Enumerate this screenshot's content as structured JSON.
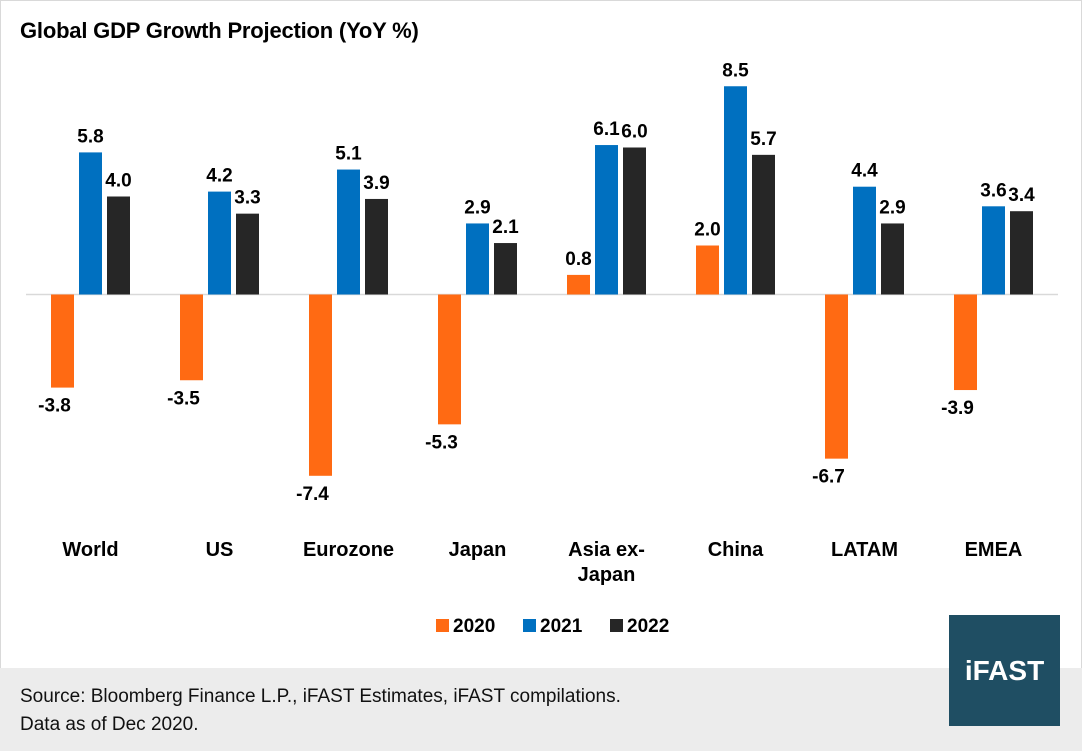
{
  "chart_data": {
    "type": "bar",
    "title": "Global GDP Growth Projection (YoY %)",
    "categories": [
      "World",
      "US",
      "Eurozone",
      "Japan",
      "Asia ex-Japan",
      "China",
      "LATAM",
      "EMEA"
    ],
    "category_lines": [
      [
        "World"
      ],
      [
        "US"
      ],
      [
        "Eurozone"
      ],
      [
        "Japan"
      ],
      [
        "Asia ex-",
        "Japan"
      ],
      [
        "China"
      ],
      [
        "LATAM"
      ],
      [
        "EMEA"
      ]
    ],
    "series": [
      {
        "name": "2020",
        "color": "#ff6a13",
        "values": [
          -3.8,
          -3.5,
          -7.4,
          -5.3,
          0.8,
          2.0,
          -6.7,
          -3.9
        ]
      },
      {
        "name": "2021",
        "color": "#0070c0",
        "values": [
          5.8,
          4.2,
          5.1,
          2.9,
          6.1,
          8.5,
          4.4,
          3.6
        ]
      },
      {
        "name": "2022",
        "color": "#262626",
        "values": [
          4.0,
          3.3,
          3.9,
          2.1,
          6.0,
          5.7,
          2.9,
          3.4
        ]
      }
    ],
    "data_labels": [
      [
        "-3.8",
        "-3.5",
        "-7.4",
        "-5.3",
        "0.8",
        "2.0",
        "-6.7",
        "-3.9"
      ],
      [
        "5.8",
        "4.2",
        "5.1",
        "2.9",
        "6.1",
        "8.5",
        "4.4",
        "3.6"
      ],
      [
        "4.0",
        "3.3",
        "3.9",
        "2.1",
        "6.0",
        "5.7",
        "2.9",
        "3.4"
      ]
    ],
    "legend_position": "bottom",
    "grid": false
  },
  "source_line1": "Source: Bloomberg Finance L.P., iFAST Estimates, iFAST compilations.",
  "source_line2": "Data as of Dec 2020.",
  "logo_text": "iFAST"
}
